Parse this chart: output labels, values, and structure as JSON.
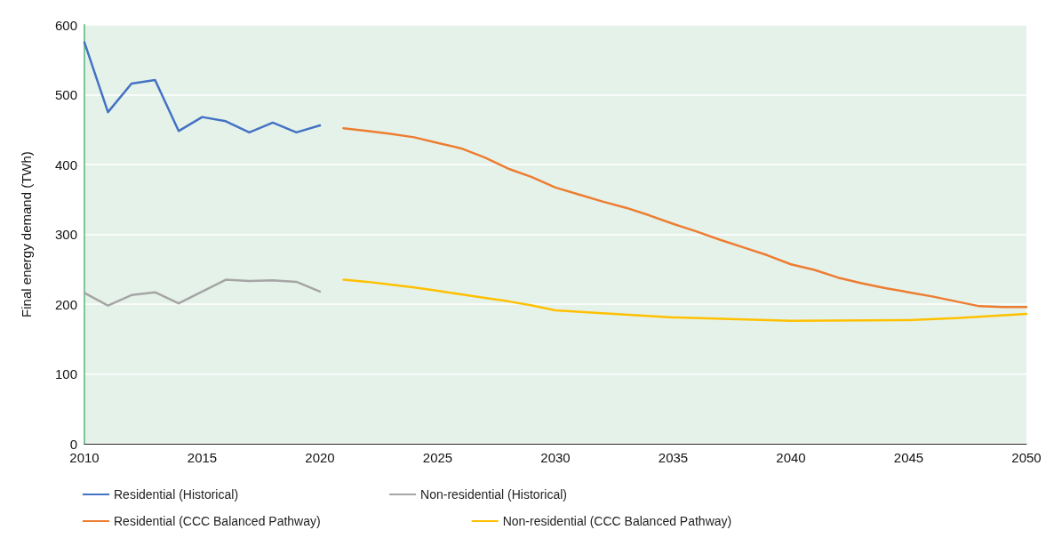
{
  "chart_data": {
    "type": "line",
    "ylabel": "Final energy demand (TWh)",
    "xlim": [
      2010,
      2050
    ],
    "xticks": [
      2010,
      2015,
      2020,
      2025,
      2030,
      2035,
      2040,
      2045,
      2050
    ],
    "ylim": [
      0,
      600
    ],
    "yticks": [
      0,
      100,
      200,
      300,
      400,
      500,
      600
    ],
    "grid": "y",
    "legend": "bottom",
    "marker": "none",
    "line_style": "solid",
    "series": [
      {
        "name": "Residential (Historical)",
        "color": "#4472c4",
        "x": [
          2010,
          2011,
          2012,
          2013,
          2014,
          2015,
          2016,
          2017,
          2018,
          2019,
          2020
        ],
        "values": [
          575,
          475,
          516,
          521,
          448,
          468,
          462,
          446,
          460,
          446,
          456
        ]
      },
      {
        "name": "Non-residential (Historical)",
        "color": "#a5a5a5",
        "x": [
          2010,
          2011,
          2012,
          2013,
          2014,
          2015,
          2016,
          2017,
          2018,
          2019,
          2020
        ],
        "values": [
          216,
          198,
          213,
          217,
          201,
          218,
          235,
          233,
          234,
          232,
          218
        ]
      },
      {
        "name": "Residential (CCC Balanced Pathway)",
        "color": "#ed7d31",
        "x": [
          2021,
          2022,
          2023,
          2024,
          2025,
          2026,
          2027,
          2028,
          2029,
          2030,
          2031,
          2032,
          2033,
          2034,
          2035,
          2036,
          2037,
          2038,
          2039,
          2040,
          2041,
          2042,
          2043,
          2044,
          2045,
          2046,
          2047,
          2048,
          2049,
          2050
        ],
        "values": [
          452,
          448,
          444,
          439,
          431,
          423,
          410,
          394,
          382,
          367,
          357,
          347,
          338,
          327,
          315,
          304,
          292,
          281,
          270,
          257,
          249,
          238,
          230,
          223,
          217,
          211,
          204,
          197,
          196,
          196
        ]
      },
      {
        "name": "Non-residential (CCC Balanced Pathway)",
        "color": "#ffc000",
        "x": [
          2021,
          2022,
          2023,
          2024,
          2025,
          2026,
          2027,
          2028,
          2029,
          2030,
          2032,
          2035,
          2040,
          2045,
          2047,
          2050
        ],
        "values": [
          235,
          232,
          228,
          224,
          219,
          214,
          209,
          204,
          198,
          191,
          187,
          181,
          176,
          177,
          180,
          186
        ]
      }
    ]
  }
}
